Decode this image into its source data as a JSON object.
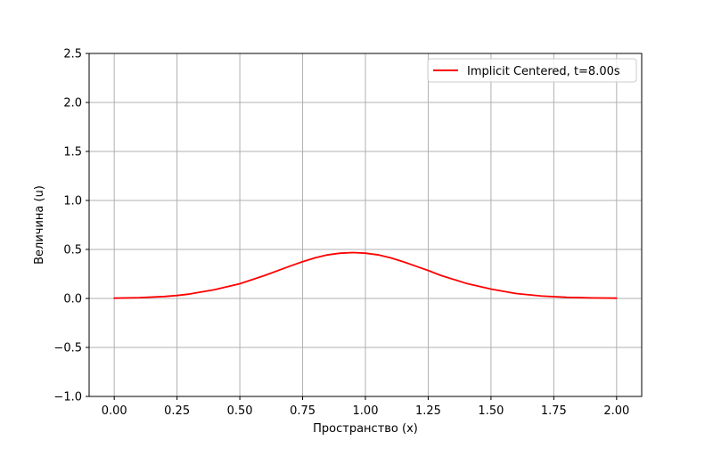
{
  "chart_data": {
    "type": "line",
    "title": "",
    "xlabel": "Пространство (x)",
    "ylabel": "Величина (u)",
    "xlim": [
      -0.1,
      2.1
    ],
    "ylim": [
      -1.0,
      2.5
    ],
    "grid": true,
    "legend_position": "top-right",
    "x_ticks": [
      0.0,
      0.25,
      0.5,
      0.75,
      1.0,
      1.25,
      1.5,
      1.75,
      2.0
    ],
    "x_tick_labels": [
      "0.00",
      "0.25",
      "0.50",
      "0.75",
      "1.00",
      "1.25",
      "1.50",
      "1.75",
      "2.00"
    ],
    "y_ticks": [
      -1.0,
      -0.5,
      0.0,
      0.5,
      1.0,
      1.5,
      2.0,
      2.5
    ],
    "y_tick_labels": [
      "−1.0",
      "−0.5",
      "0.0",
      "0.5",
      "1.0",
      "1.5",
      "2.0",
      "2.5"
    ],
    "series": [
      {
        "name": "Implicit Centered, t=8.00s",
        "color": "#ff0000",
        "x": [
          0.0,
          0.1,
          0.2,
          0.25,
          0.3,
          0.4,
          0.5,
          0.6,
          0.7,
          0.75,
          0.8,
          0.85,
          0.9,
          0.95,
          1.0,
          1.05,
          1.1,
          1.15,
          1.2,
          1.25,
          1.3,
          1.4,
          1.5,
          1.6,
          1.7,
          1.75,
          1.8,
          1.9,
          2.0
        ],
        "y": [
          0.003,
          0.008,
          0.02,
          0.03,
          0.045,
          0.09,
          0.15,
          0.235,
          0.33,
          0.375,
          0.415,
          0.445,
          0.462,
          0.468,
          0.462,
          0.445,
          0.415,
          0.375,
          0.33,
          0.285,
          0.235,
          0.155,
          0.095,
          0.05,
          0.025,
          0.018,
          0.012,
          0.006,
          0.003
        ]
      }
    ]
  }
}
